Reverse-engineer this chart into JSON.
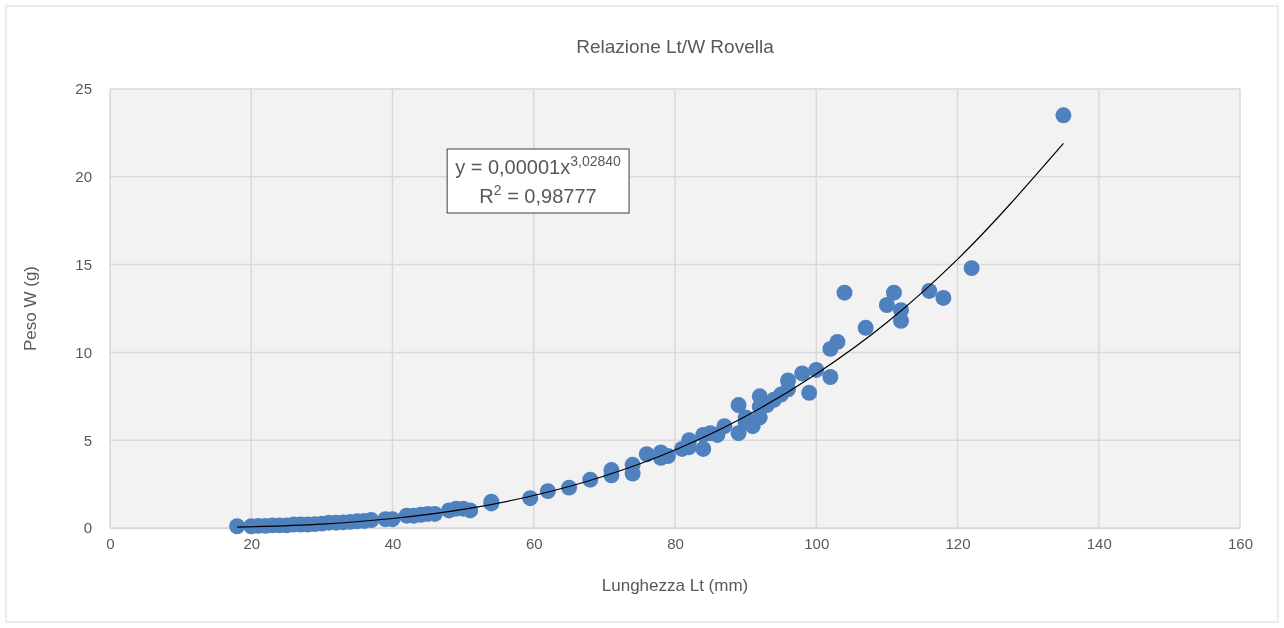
{
  "chart_data": {
    "type": "scatter",
    "title": "Relazione Lt/W Rovella",
    "xlabel": "Lunghezza Lt (mm)",
    "ylabel": "Peso W (g)",
    "xlim": [
      0,
      160
    ],
    "xticks": [
      0,
      20,
      40,
      60,
      80,
      100,
      120,
      140,
      160
    ],
    "ylim": [
      0,
      25
    ],
    "yticks": [
      0,
      5,
      10,
      15,
      20,
      25
    ],
    "grid": true,
    "marker": "circle",
    "annotations": [
      "y = 0,00001x$^{3,02840}$",
      "R$^{2}$ = 0,98777"
    ],
    "series": [
      {
        "color": "#4e81bd",
        "x": [
          18,
          20,
          21,
          22,
          23,
          24,
          25,
          26,
          27,
          28,
          29,
          30,
          31,
          32,
          33,
          34,
          35,
          36,
          37,
          39,
          40,
          42,
          43,
          44,
          45,
          46,
          48,
          49,
          50,
          51,
          54,
          54,
          59.5,
          62,
          65,
          68,
          71,
          71,
          74,
          74,
          76,
          78,
          78,
          79,
          81,
          82,
          82,
          84,
          84,
          85,
          86,
          87,
          89,
          89,
          90,
          90,
          91,
          92,
          92,
          92,
          93,
          94,
          95,
          96,
          96,
          98,
          99,
          100,
          102,
          102,
          103,
          104,
          107,
          110,
          111,
          112,
          112,
          116,
          118,
          122,
          135
        ],
        "values": [
          0.1,
          0.1,
          0.12,
          0.12,
          0.15,
          0.15,
          0.15,
          0.2,
          0.2,
          0.2,
          0.22,
          0.25,
          0.3,
          0.3,
          0.32,
          0.35,
          0.38,
          0.4,
          0.45,
          0.5,
          0.5,
          0.7,
          0.7,
          0.75,
          0.8,
          0.8,
          1.0,
          1.1,
          1.1,
          1.0,
          1.5,
          1.4,
          1.7,
          2.1,
          2.3,
          2.75,
          3.3,
          3.0,
          3.6,
          3.1,
          4.2,
          4.0,
          4.3,
          4.1,
          4.5,
          4.6,
          5.0,
          5.3,
          4.5,
          5.4,
          5.3,
          5.8,
          7.0,
          5.4,
          6.3,
          6.0,
          5.8,
          7.5,
          6.3,
          6.9,
          7.0,
          7.3,
          7.6,
          8.4,
          7.9,
          8.8,
          7.7,
          9.0,
          10.2,
          8.6,
          10.6,
          13.4,
          11.4,
          12.7,
          13.4,
          12.4,
          11.8,
          13.5,
          13.1,
          14.8,
          23.5
        ]
      },
      {
        "type": "line",
        "color": "#000000",
        "marker": "none",
        "x": [
          18,
          30,
          40,
          50,
          60,
          70,
          80,
          90,
          100,
          110,
          120,
          135
        ],
        "values": [
          0.05,
          0.22,
          0.54,
          1.06,
          1.85,
          2.96,
          4.44,
          6.36,
          8.77,
          11.7,
          15.3,
          21.9
        ]
      }
    ]
  }
}
